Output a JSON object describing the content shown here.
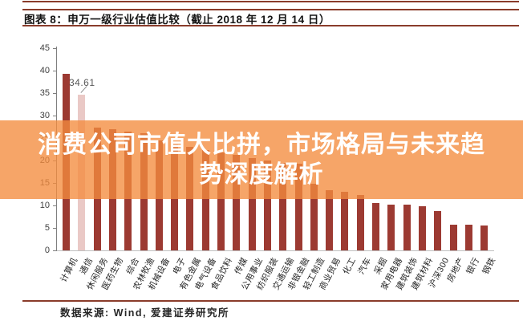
{
  "header": {
    "title": "图表 8：申万一级行业估值比较（截止 2018 年 12 月 14 日）"
  },
  "overlay": {
    "line1": "消费公司市值大比拼，市场格局与未来趋",
    "line2": "势深度解析",
    "bg_color": "#F38C3E",
    "text_color": "#FFFFFF"
  },
  "footer": {
    "source": "数据来源: Wind, 爱建证券研究所"
  },
  "colors": {
    "bar": "#9C3A32",
    "bar_highlight": "#EAC9C6",
    "rule": "#8A3C2B",
    "axis": "#7F7F7F"
  },
  "chart_data": {
    "type": "bar",
    "title": "申万一级行业估值比较（截止 2018 年 12 月 14 日）",
    "xlabel": "",
    "ylabel": "",
    "ylim": [
      0,
      45
    ],
    "ytick_step": 5,
    "grid": false,
    "legend": "none",
    "categories": [
      "计算机",
      "通信",
      "休闲服务",
      "医药生物",
      "综合",
      "农林牧渔",
      "机械设备",
      "电子",
      "有色金属",
      "电气设备",
      "食品饮料",
      "传媒",
      "公用事业",
      "纺织服装",
      "交通运输",
      "非银金融",
      "轻工制造",
      "商业贸易",
      "化工",
      "汽车",
      "采掘",
      "家用电器",
      "建筑装饰",
      "建筑材料",
      "沪深300",
      "房地产",
      "银行",
      "钢铁"
    ],
    "values": [
      39.3,
      34.61,
      27.4,
      27.0,
      26.5,
      26.0,
      24.5,
      23.5,
      23.0,
      22.4,
      21.8,
      21.2,
      20.6,
      20.0,
      19.5,
      19.3,
      14.9,
      13.4,
      13.0,
      12.3,
      10.6,
      10.2,
      10.1,
      9.9,
      8.7,
      5.8,
      5.7,
      5.5
    ],
    "highlight": {
      "category": "通信",
      "index": 1,
      "value_label": "34.61"
    }
  }
}
